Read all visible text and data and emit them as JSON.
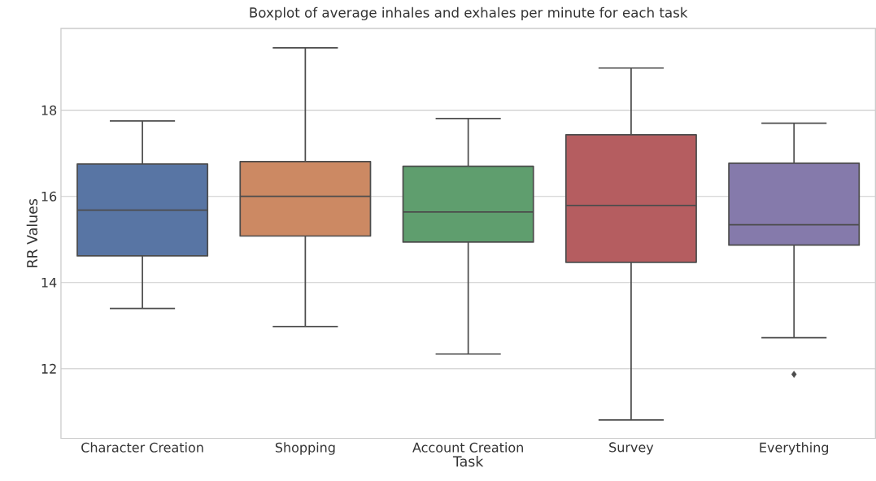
{
  "chart_data": {
    "type": "box",
    "title": "Boxplot of average inhales and exhales per minute for each task",
    "xlabel": "Task",
    "ylabel": "RR Values",
    "categories": [
      "Character Creation",
      "Shopping",
      "Account Creation",
      "Survey",
      "Everything"
    ],
    "colors": [
      "#5875a4",
      "#cc8963",
      "#5f9e6e",
      "#b55d60",
      "#857aab"
    ],
    "boxes": [
      {
        "low": 13.4,
        "q1": 14.62,
        "median": 15.68,
        "q3": 16.75,
        "high": 17.75
      },
      {
        "low": 12.98,
        "q1": 15.08,
        "median": 16.0,
        "q3": 16.81,
        "high": 19.45
      },
      {
        "low": 12.34,
        "q1": 14.94,
        "median": 15.64,
        "q3": 16.7,
        "high": 17.81
      },
      {
        "low": 10.81,
        "q1": 14.47,
        "median": 15.79,
        "q3": 17.43,
        "high": 18.98
      },
      {
        "low": 12.72,
        "q1": 14.87,
        "median": 15.34,
        "q3": 16.77,
        "high": 17.7,
        "outliers": [
          11.87
        ]
      }
    ],
    "ylim": [
      10.38,
      19.9
    ],
    "yticks": [
      12,
      14,
      16,
      18
    ],
    "grid": "y"
  }
}
